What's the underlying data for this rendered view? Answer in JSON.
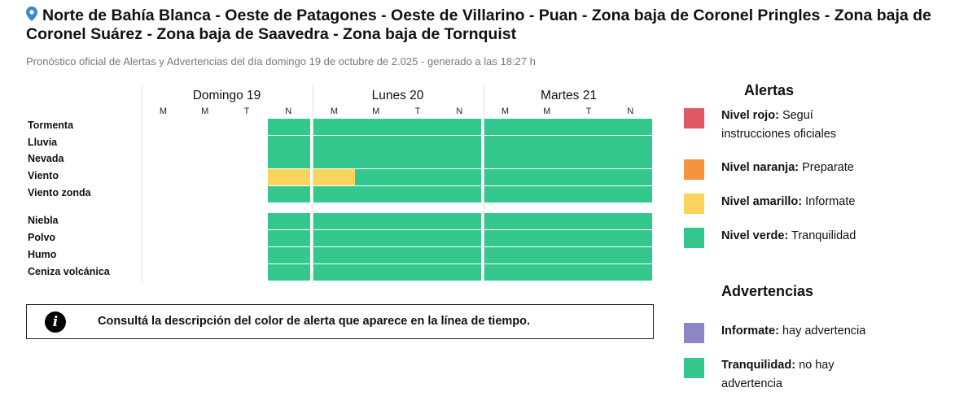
{
  "header": {
    "title": "Norte de Bahía Blanca - Oeste de Patagones - Oeste de Villarino - Puan - Zona baja de Coronel Pringles - Zona baja de Coronel Suárez - Zona baja de Saavedra - Zona baja de Tornquist",
    "subtitle": "Pronóstico oficial de Alertas y Advertencias del día domingo 19 de octubre de 2.025 - generado a las 18:27 h",
    "pin_icon": "location-pin-icon"
  },
  "colors": {
    "green": "#35c88e",
    "yellow": "#fbd460",
    "orange": "#f4943f",
    "red": "#e05766",
    "purple": "#8c86c4",
    "none": "transparent"
  },
  "timeline": {
    "days": [
      {
        "label": "Domingo 19",
        "periods": [
          "M",
          "M",
          "T",
          "N"
        ]
      },
      {
        "label": "Lunes 20",
        "periods": [
          "M",
          "M",
          "T",
          "N"
        ]
      },
      {
        "label": "Martes 21",
        "periods": [
          "M",
          "M",
          "T",
          "N"
        ]
      }
    ],
    "phenomena": [
      {
        "name": "Tormenta",
        "levels": [
          "none",
          "none",
          "none",
          "green",
          "green",
          "green",
          "green",
          "green",
          "green",
          "green",
          "green",
          "green"
        ]
      },
      {
        "name": "Lluvia",
        "levels": [
          "none",
          "none",
          "none",
          "green",
          "green",
          "green",
          "green",
          "green",
          "green",
          "green",
          "green",
          "green"
        ]
      },
      {
        "name": "Nevada",
        "levels": [
          "none",
          "none",
          "none",
          "green",
          "green",
          "green",
          "green",
          "green",
          "green",
          "green",
          "green",
          "green"
        ]
      },
      {
        "name": "Viento",
        "levels": [
          "none",
          "none",
          "none",
          "yellow",
          "yellow",
          "green",
          "green",
          "green",
          "green",
          "green",
          "green",
          "green"
        ]
      },
      {
        "name": "Viento zonda",
        "levels": [
          "none",
          "none",
          "none",
          "green",
          "green",
          "green",
          "green",
          "green",
          "green",
          "green",
          "green",
          "green"
        ]
      },
      {
        "name": "Niebla",
        "levels": [
          "none",
          "none",
          "none",
          "green",
          "green",
          "green",
          "green",
          "green",
          "green",
          "green",
          "green",
          "green"
        ]
      },
      {
        "name": "Polvo",
        "levels": [
          "none",
          "none",
          "none",
          "green",
          "green",
          "green",
          "green",
          "green",
          "green",
          "green",
          "green",
          "green"
        ]
      },
      {
        "name": "Humo",
        "levels": [
          "none",
          "none",
          "none",
          "green",
          "green",
          "green",
          "green",
          "green",
          "green",
          "green",
          "green",
          "green"
        ]
      },
      {
        "name": "Ceniza volcánica",
        "levels": [
          "none",
          "none",
          "none",
          "green",
          "green",
          "green",
          "green",
          "green",
          "green",
          "green",
          "green",
          "green"
        ]
      }
    ]
  },
  "info": {
    "icon": "info-icon",
    "text": "Consultá la descripción del color de alerta que aparece en la línea de tiempo."
  },
  "legend": {
    "alertas_title": "Alertas",
    "alertas": [
      {
        "level": "Nivel rojo:",
        "desc": "Seguí instrucciones oficiales",
        "color": "red"
      },
      {
        "level": "Nivel naranja:",
        "desc": "Preparate",
        "color": "orange"
      },
      {
        "level": "Nivel amarillo:",
        "desc": "Informate",
        "color": "yellow"
      },
      {
        "level": "Nivel verde:",
        "desc": "Tranquilidad",
        "color": "green"
      }
    ],
    "advertencias_title": "Advertencias",
    "advertencias": [
      {
        "level": "Informate:",
        "desc": "hay advertencia",
        "color": "purple"
      },
      {
        "level": "Tranquilidad:",
        "desc": "no hay advertencia",
        "color": "green"
      }
    ]
  }
}
